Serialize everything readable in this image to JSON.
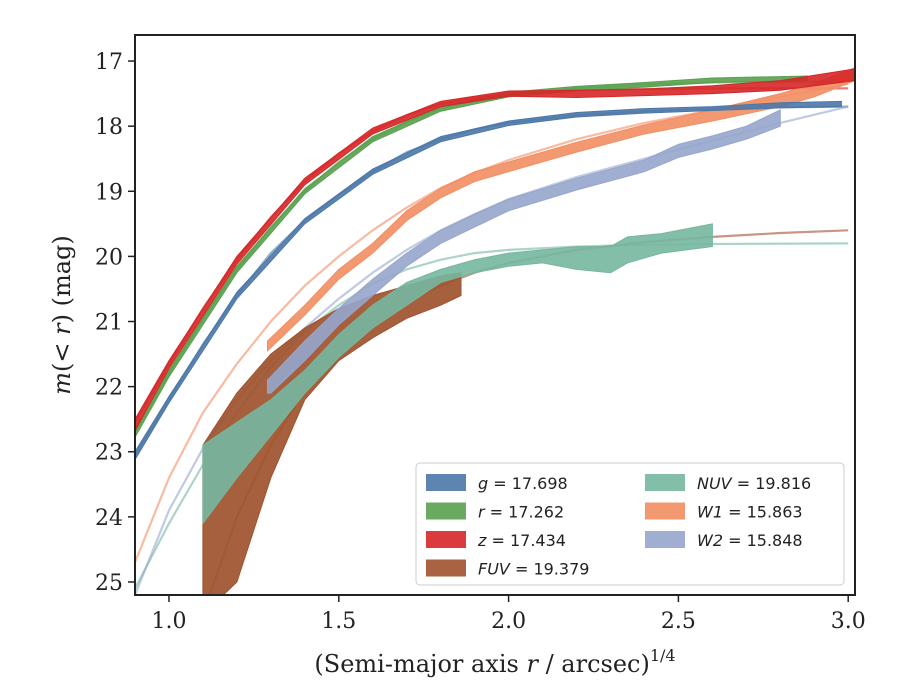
{
  "chart_data": {
    "type": "line",
    "xlabel": "(Semi-major axis r / arcsec)",
    "xlabel_parts": [
      "(Semi-major axis ",
      "r",
      " / arcsec)",
      "1/4"
    ],
    "ylabel": "m(< r) (mag)",
    "ylabel_parts": [
      "m",
      "(< ",
      "r",
      ") (mag)"
    ],
    "xlim": [
      0.9,
      3.02
    ],
    "ylim": [
      25.2,
      16.6
    ],
    "y_inverted": true,
    "xticks": [
      1.0,
      1.5,
      2.0,
      2.5,
      3.0
    ],
    "xtick_labels": [
      "1.0",
      "1.5",
      "2.0",
      "2.5",
      "3.0"
    ],
    "yticks": [
      17,
      18,
      19,
      20,
      21,
      22,
      23,
      24,
      25
    ],
    "ytick_labels": [
      "17",
      "18",
      "19",
      "20",
      "21",
      "22",
      "23",
      "24",
      "25"
    ],
    "grid": false,
    "legend_position": "lower-right",
    "series": [
      {
        "name": "g = 17.698",
        "legend_var": "g",
        "legend_val": "= 17.698",
        "color": "#4c78a8",
        "model": [
          [
            0.9,
            23.05
          ],
          [
            1.0,
            22.2
          ],
          [
            1.1,
            21.35
          ],
          [
            1.2,
            20.6
          ],
          [
            1.3,
            19.95
          ],
          [
            1.4,
            19.45
          ],
          [
            1.5,
            19.05
          ],
          [
            1.6,
            18.7
          ],
          [
            1.7,
            18.4
          ],
          [
            1.8,
            18.2
          ],
          [
            1.9,
            18.05
          ],
          [
            2.0,
            17.95
          ],
          [
            2.2,
            17.83
          ],
          [
            2.4,
            17.77
          ],
          [
            2.6,
            17.73
          ],
          [
            2.8,
            17.71
          ],
          [
            3.0,
            17.7
          ]
        ],
        "band": [
          [
            0.9,
            23.0,
            23.12
          ],
          [
            1.0,
            22.15,
            22.25
          ],
          [
            1.2,
            20.55,
            20.65
          ],
          [
            1.4,
            19.42,
            19.5
          ],
          [
            1.6,
            18.66,
            18.74
          ],
          [
            1.8,
            18.16,
            18.24
          ],
          [
            2.0,
            17.92,
            17.99
          ],
          [
            2.2,
            17.79,
            17.86
          ],
          [
            2.4,
            17.73,
            17.8
          ],
          [
            2.6,
            17.7,
            17.76
          ],
          [
            2.8,
            17.64,
            17.72
          ],
          [
            2.98,
            17.62,
            17.7
          ]
        ]
      },
      {
        "name": "r = 17.262",
        "legend_var": "r",
        "legend_val": "= 17.262",
        "color": "#59a14f",
        "model": [
          [
            0.9,
            22.7
          ],
          [
            1.0,
            21.8
          ],
          [
            1.1,
            20.95
          ],
          [
            1.2,
            20.2
          ],
          [
            1.3,
            19.55
          ],
          [
            1.4,
            19.0
          ],
          [
            1.5,
            18.55
          ],
          [
            1.6,
            18.2
          ],
          [
            1.7,
            17.93
          ],
          [
            1.8,
            17.73
          ],
          [
            1.9,
            17.6
          ],
          [
            2.0,
            17.52
          ],
          [
            2.2,
            17.42
          ],
          [
            2.4,
            17.36
          ],
          [
            2.6,
            17.33
          ],
          [
            2.8,
            17.32
          ],
          [
            3.0,
            17.31
          ]
        ],
        "band": [
          [
            0.9,
            22.65,
            22.78
          ],
          [
            1.0,
            21.75,
            21.85
          ],
          [
            1.2,
            20.15,
            20.25
          ],
          [
            1.4,
            18.96,
            19.04
          ],
          [
            1.6,
            18.16,
            18.24
          ],
          [
            1.8,
            17.7,
            17.77
          ],
          [
            2.0,
            17.48,
            17.55
          ],
          [
            2.2,
            17.39,
            17.46
          ],
          [
            2.4,
            17.33,
            17.4
          ],
          [
            2.6,
            17.26,
            17.33
          ],
          [
            2.88,
            17.23,
            17.3
          ]
        ]
      },
      {
        "name": "z = 17.434",
        "legend_var": "z",
        "legend_val": "= 17.434",
        "color": "#d62728",
        "model": [
          [
            0.9,
            22.55
          ],
          [
            1.0,
            21.65
          ],
          [
            1.1,
            20.8
          ],
          [
            1.2,
            20.05
          ],
          [
            1.3,
            19.4
          ],
          [
            1.4,
            18.85
          ],
          [
            1.5,
            18.42
          ],
          [
            1.6,
            18.08
          ],
          [
            1.7,
            17.83
          ],
          [
            1.8,
            17.66
          ],
          [
            1.9,
            17.56
          ],
          [
            2.0,
            17.5
          ],
          [
            2.2,
            17.45
          ],
          [
            2.4,
            17.43
          ],
          [
            2.6,
            17.42
          ],
          [
            2.8,
            17.42
          ],
          [
            3.0,
            17.42
          ]
        ],
        "band": [
          [
            0.9,
            22.5,
            22.68
          ],
          [
            1.0,
            21.6,
            21.72
          ],
          [
            1.2,
            20.0,
            20.12
          ],
          [
            1.4,
            18.8,
            18.9
          ],
          [
            1.6,
            18.03,
            18.12
          ],
          [
            1.8,
            17.62,
            17.7
          ],
          [
            2.0,
            17.46,
            17.54
          ],
          [
            2.2,
            17.45,
            17.56
          ],
          [
            2.4,
            17.43,
            17.53
          ],
          [
            2.6,
            17.38,
            17.5
          ],
          [
            2.8,
            17.3,
            17.45
          ],
          [
            3.02,
            17.12,
            17.3
          ]
        ]
      },
      {
        "name": "FUV = 19.379",
        "legend_var": "FUV",
        "legend_val": "= 19.379",
        "color": "#a0522d",
        "model": [
          [
            1.1,
            25.5
          ],
          [
            1.2,
            24.0
          ],
          [
            1.3,
            22.9
          ],
          [
            1.4,
            22.05
          ],
          [
            1.5,
            21.45
          ],
          [
            1.6,
            21.0
          ],
          [
            1.7,
            20.68
          ],
          [
            1.8,
            20.45
          ],
          [
            1.9,
            20.25
          ],
          [
            2.0,
            20.1
          ],
          [
            2.2,
            19.9
          ],
          [
            2.4,
            19.78
          ],
          [
            2.6,
            19.7
          ],
          [
            2.8,
            19.64
          ],
          [
            3.0,
            19.6
          ]
        ],
        "band": [
          [
            1.1,
            22.9,
            25.5
          ],
          [
            1.2,
            22.1,
            25.0
          ],
          [
            1.3,
            21.5,
            23.4
          ],
          [
            1.4,
            21.1,
            22.2
          ],
          [
            1.5,
            20.8,
            21.6
          ],
          [
            1.6,
            20.6,
            21.25
          ],
          [
            1.7,
            20.45,
            20.95
          ],
          [
            1.8,
            20.3,
            20.75
          ],
          [
            1.86,
            20.25,
            20.6
          ]
        ]
      },
      {
        "name": "NUV = 19.816",
        "legend_var": "NUV",
        "legend_val": "= 19.816",
        "color": "#76b7a0",
        "model": [
          [
            0.9,
            25.1
          ],
          [
            1.0,
            24.1
          ],
          [
            1.1,
            23.2
          ],
          [
            1.2,
            22.4
          ],
          [
            1.3,
            21.7
          ],
          [
            1.4,
            21.15
          ],
          [
            1.5,
            20.75
          ],
          [
            1.6,
            20.42
          ],
          [
            1.7,
            20.2
          ],
          [
            1.8,
            20.05
          ],
          [
            1.9,
            19.95
          ],
          [
            2.0,
            19.9
          ],
          [
            2.2,
            19.85
          ],
          [
            2.4,
            19.82
          ],
          [
            2.6,
            19.81
          ],
          [
            3.0,
            19.8
          ]
        ],
        "band": [
          [
            1.1,
            22.9,
            24.1
          ],
          [
            1.2,
            22.55,
            23.4
          ],
          [
            1.3,
            22.2,
            22.75
          ],
          [
            1.4,
            21.75,
            22.1
          ],
          [
            1.5,
            21.2,
            21.55
          ],
          [
            1.6,
            20.75,
            21.1
          ],
          [
            1.7,
            20.4,
            20.75
          ],
          [
            1.8,
            20.2,
            20.4
          ],
          [
            1.9,
            20.05,
            20.25
          ],
          [
            2.0,
            19.95,
            20.15
          ],
          [
            2.1,
            19.9,
            20.1
          ],
          [
            2.2,
            19.85,
            20.2
          ],
          [
            2.3,
            19.85,
            20.25
          ],
          [
            2.35,
            19.7,
            20.1
          ],
          [
            2.45,
            19.65,
            19.95
          ],
          [
            2.6,
            19.5,
            19.85
          ]
        ]
      },
      {
        "name": "W1 = 15.863",
        "legend_var": "W1",
        "legend_val": "= 15.863",
        "color": "#f28e63",
        "model": [
          [
            0.9,
            24.7
          ],
          [
            1.0,
            23.4
          ],
          [
            1.1,
            22.4
          ],
          [
            1.2,
            21.65
          ],
          [
            1.3,
            21.0
          ],
          [
            1.4,
            20.45
          ],
          [
            1.5,
            20.0
          ],
          [
            1.6,
            19.6
          ],
          [
            1.7,
            19.25
          ],
          [
            1.8,
            18.95
          ],
          [
            1.9,
            18.72
          ],
          [
            2.0,
            18.52
          ],
          [
            2.2,
            18.2
          ],
          [
            2.4,
            17.95
          ],
          [
            2.6,
            17.75
          ],
          [
            2.8,
            17.55
          ],
          [
            3.0,
            17.35
          ]
        ],
        "band": [
          [
            1.29,
            21.3,
            21.45
          ],
          [
            1.4,
            20.75,
            20.9
          ],
          [
            1.5,
            20.2,
            20.35
          ],
          [
            1.6,
            19.8,
            19.95
          ],
          [
            1.7,
            19.3,
            19.45
          ],
          [
            1.8,
            18.95,
            19.1
          ],
          [
            1.9,
            18.7,
            18.85
          ],
          [
            2.0,
            18.55,
            18.7
          ],
          [
            2.2,
            18.25,
            18.4
          ],
          [
            2.4,
            17.98,
            18.12
          ],
          [
            2.6,
            17.75,
            17.92
          ],
          [
            2.8,
            17.5,
            17.7
          ],
          [
            2.9,
            17.35,
            17.55
          ],
          [
            3.02,
            17.1,
            17.3
          ]
        ]
      },
      {
        "name": "W2 = 15.848",
        "legend_var": "W2",
        "legend_val": "= 15.848",
        "color": "#96a6cc",
        "model": [
          [
            0.9,
            25.2
          ],
          [
            1.0,
            23.9
          ],
          [
            1.1,
            22.95
          ],
          [
            1.2,
            22.2
          ],
          [
            1.3,
            21.6
          ],
          [
            1.4,
            21.1
          ],
          [
            1.5,
            20.65
          ],
          [
            1.6,
            20.25
          ],
          [
            1.7,
            19.9
          ],
          [
            1.8,
            19.6
          ],
          [
            1.9,
            19.35
          ],
          [
            2.0,
            19.12
          ],
          [
            2.2,
            18.78
          ],
          [
            2.4,
            18.5
          ],
          [
            2.6,
            18.22
          ],
          [
            2.8,
            17.95
          ],
          [
            3.0,
            17.7
          ]
        ],
        "band": [
          [
            1.29,
            21.9,
            22.1
          ],
          [
            1.3,
            21.85,
            22.1
          ],
          [
            1.4,
            21.3,
            21.6
          ],
          [
            1.5,
            20.8,
            21.05
          ],
          [
            1.6,
            20.35,
            20.6
          ],
          [
            1.7,
            19.95,
            20.15
          ],
          [
            1.8,
            19.6,
            19.8
          ],
          [
            1.9,
            19.35,
            19.55
          ],
          [
            2.0,
            19.12,
            19.3
          ],
          [
            2.2,
            18.8,
            18.98
          ],
          [
            2.4,
            18.52,
            18.7
          ],
          [
            2.5,
            18.28,
            18.48
          ],
          [
            2.6,
            18.15,
            18.35
          ],
          [
            2.7,
            18.0,
            18.2
          ],
          [
            2.8,
            17.75,
            18.0
          ]
        ]
      }
    ]
  }
}
